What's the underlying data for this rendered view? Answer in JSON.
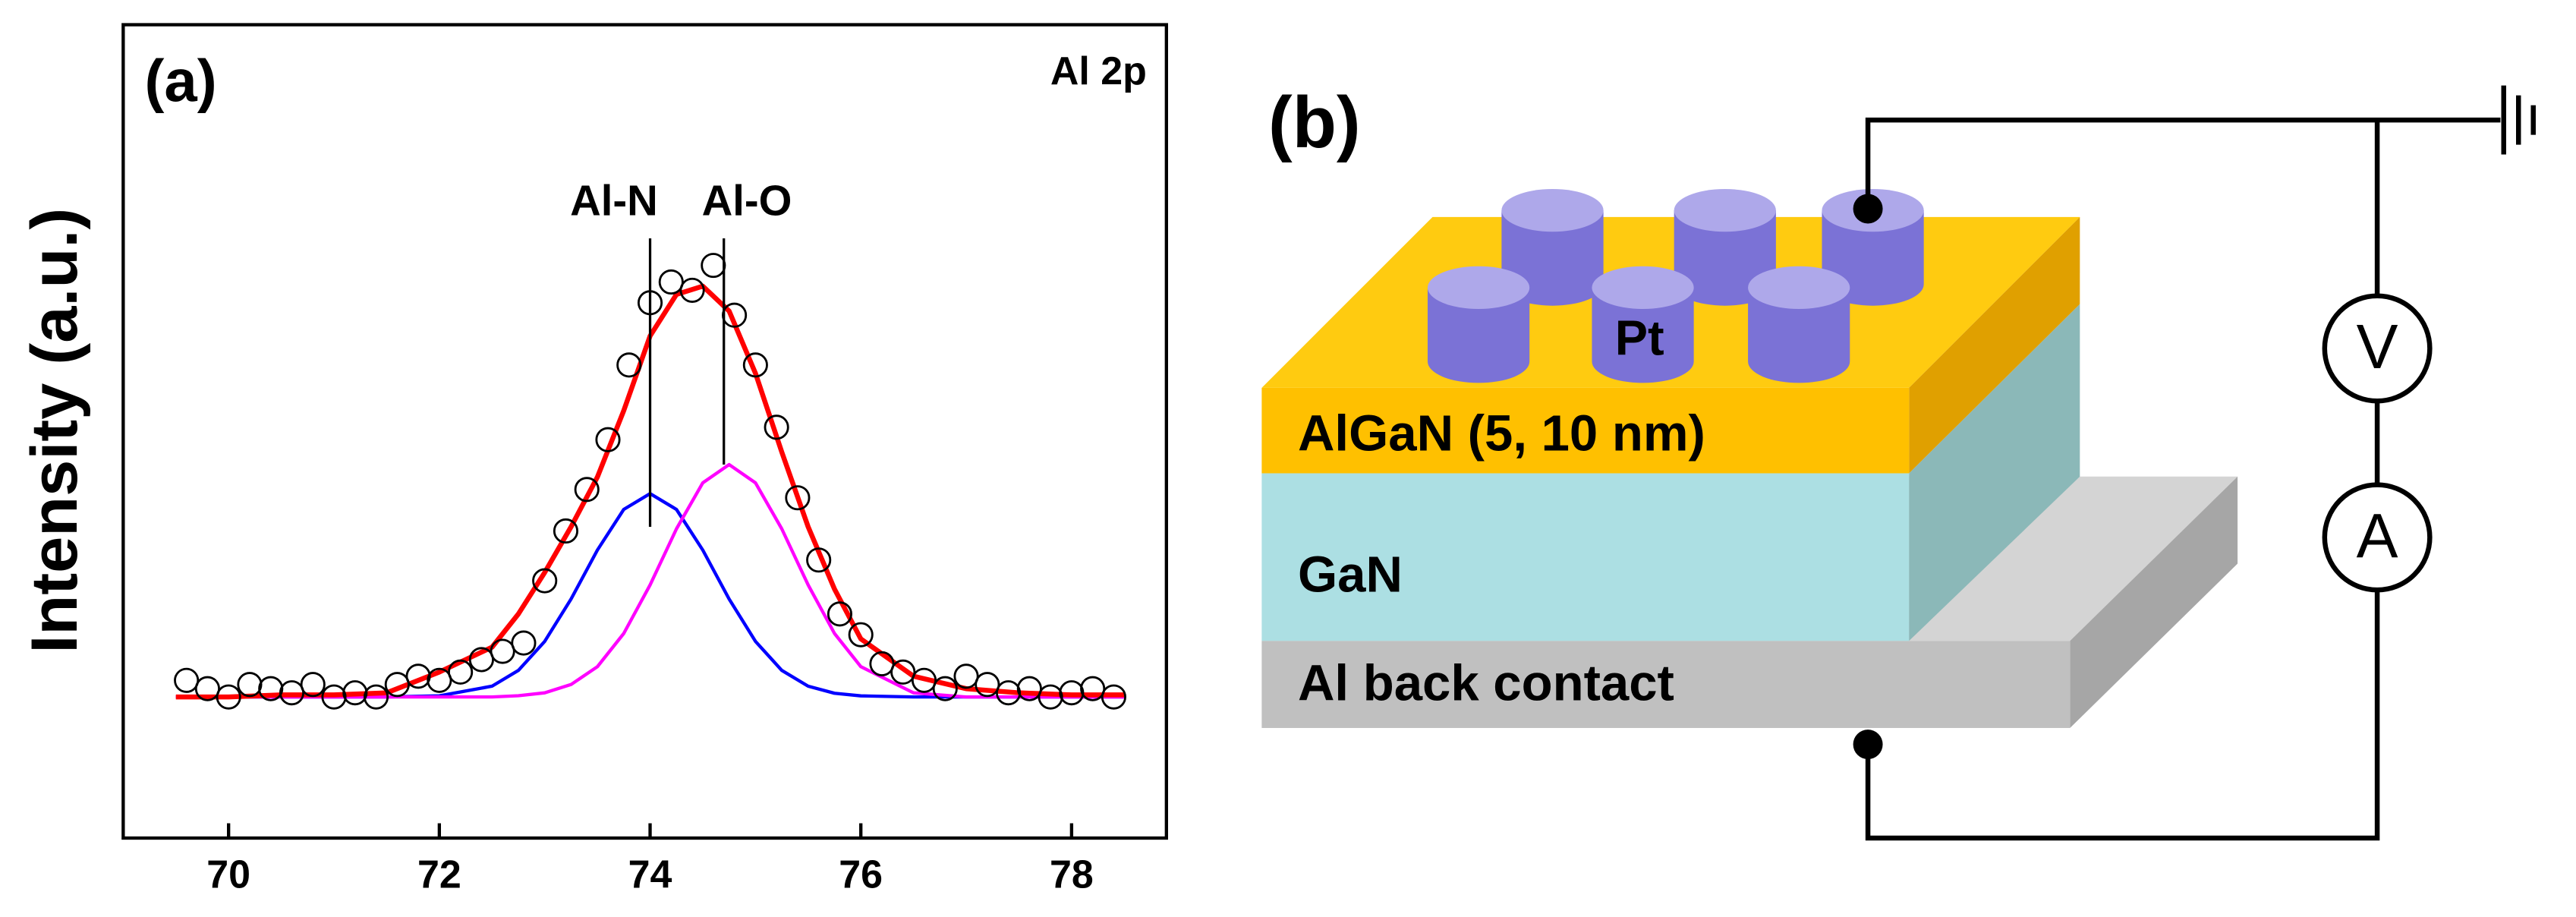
{
  "chart_data": {
    "type": "line",
    "panel": "(a)",
    "corner_label": "Al 2p",
    "ylabel": "Intensity (a.u.)",
    "xlim": [
      69.0,
      78.9
    ],
    "xticks": [
      70,
      72,
      74,
      76,
      78
    ],
    "ylim": [
      -34,
      162
    ],
    "annotations": [
      {
        "text": "Al-N",
        "x": 74.0,
        "y": 41
      },
      {
        "text": "Al-O",
        "x": 74.7,
        "y": 56
      }
    ],
    "x": [
      69.5,
      70,
      70.5,
      71,
      71.5,
      72,
      72.5,
      72.75,
      73,
      73.25,
      73.5,
      73.75,
      74,
      74.25,
      74.5,
      74.75,
      75,
      75.25,
      75.5,
      75.75,
      76,
      76.5,
      77,
      77.5,
      78,
      78.5
    ],
    "curves": [
      {
        "color": "#0000ff",
        "values": [
          0,
          0,
          0,
          0,
          0,
          0.27,
          2.6,
          6.4,
          13.4,
          23.6,
          35.4,
          45.2,
          49,
          45.2,
          35.4,
          23.6,
          13.4,
          6.4,
          2.6,
          0.9,
          0.27,
          0,
          0,
          0,
          0,
          0
        ]
      },
      {
        "color": "#ff00ff",
        "values": [
          0,
          0,
          0,
          0,
          0,
          0,
          0,
          0.3,
          1.0,
          3.0,
          7.3,
          15.3,
          27.0,
          40.5,
          51.6,
          56,
          51.6,
          40.5,
          27.0,
          15.3,
          7.3,
          1.0,
          0,
          0,
          0,
          0
        ]
      },
      {
        "color": "#ff0000",
        "values": [
          0,
          0,
          0.5,
          0.5,
          1,
          6,
          12,
          20,
          30,
          41,
          53,
          69,
          87,
          97,
          99,
          93,
          78,
          59,
          41,
          26,
          14,
          5,
          2,
          1,
          0.5,
          0.5
        ]
      }
    ],
    "points": {
      "x": [
        69.6,
        69.8,
        70.0,
        70.2,
        70.4,
        70.6,
        70.8,
        71.0,
        71.2,
        71.4,
        71.6,
        71.8,
        72.0,
        72.2,
        72.4,
        72.6,
        72.8,
        73.0,
        73.2,
        73.4,
        73.6,
        73.8,
        74.0,
        74.2,
        74.4,
        74.6,
        74.8,
        75.0,
        75.2,
        75.4,
        75.6,
        75.8,
        76.0,
        76.2,
        76.4,
        76.6,
        76.8,
        77.0,
        77.2,
        77.4,
        77.6,
        77.8,
        78.0,
        78.2,
        78.4
      ],
      "values": [
        4,
        2,
        0,
        3,
        2,
        1,
        3,
        0,
        1,
        0,
        3,
        5,
        4,
        6,
        9,
        11,
        13,
        28,
        40,
        50,
        62,
        80,
        95,
        100,
        98,
        104,
        92,
        80,
        65,
        48,
        33,
        20,
        15,
        8,
        6,
        4,
        2,
        5,
        3,
        1,
        2,
        0,
        1,
        2,
        0
      ]
    }
  },
  "diagram": {
    "label": "(b)",
    "electrode": "Pt",
    "layers": [
      "AlGaN (5, 10 nm)",
      "GaN",
      "Al back contact"
    ],
    "meters": [
      "V",
      "A"
    ]
  }
}
